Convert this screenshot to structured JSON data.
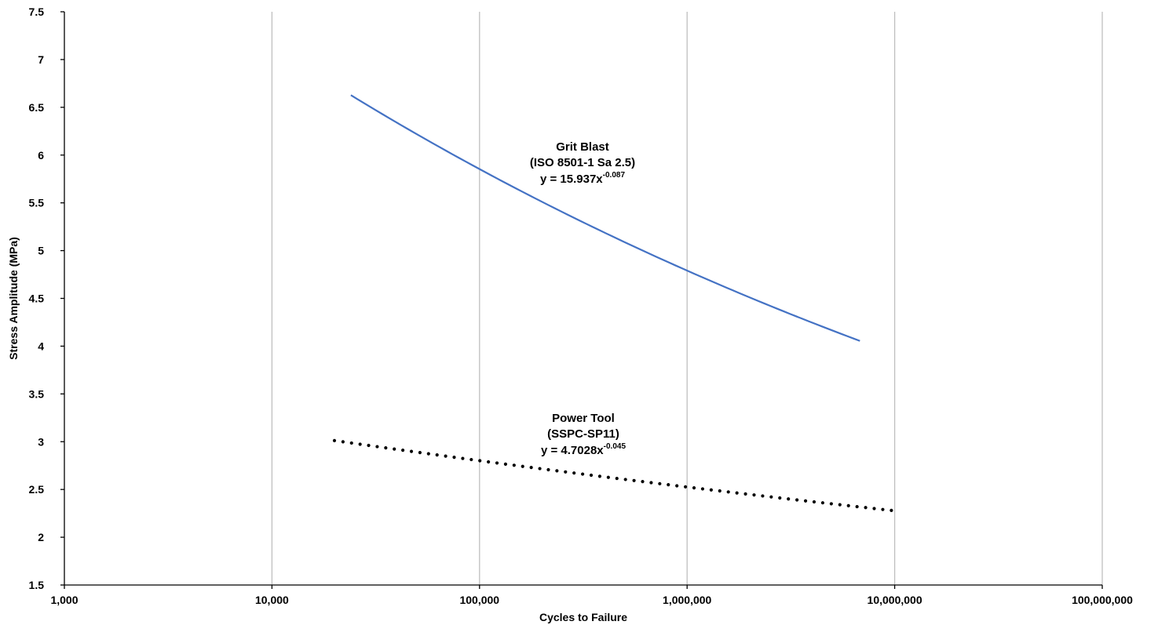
{
  "chart_data": {
    "type": "line",
    "title": "",
    "xlabel": "Cycles to Failure",
    "ylabel": "Stress Amplitude (MPa)",
    "x_scale": "log",
    "xlim": [
      1000,
      100000000
    ],
    "ylim": [
      1.5,
      7.5
    ],
    "x_ticks": [
      1000,
      10000,
      100000,
      1000000,
      10000000,
      100000000
    ],
    "x_tick_labels": [
      "1,000",
      "10,000",
      "100,000",
      "1,000,000",
      "10,000,000",
      "100,000,000"
    ],
    "y_ticks": [
      1.5,
      2,
      2.5,
      3,
      3.5,
      4,
      4.5,
      5,
      5.5,
      6,
      6.5,
      7,
      7.5
    ],
    "y_tick_labels": [
      "1.5",
      "2",
      "2.5",
      "3",
      "3.5",
      "4",
      "4.5",
      "5",
      "5.5",
      "6",
      "6.5",
      "7",
      "7.5"
    ],
    "grid": "vertical",
    "legend": "none",
    "series": [
      {
        "coefficient": 15.937,
        "exponent": -0.087,
        "x_range": [
          24000,
          6800000
        ],
        "color": "#4472C4",
        "style": "solid",
        "annotation": {
          "line1": "Grit Blast",
          "line2": "(ISO 8501-1 Sa 2.5)",
          "eq_base": "y = 15.937x",
          "eq_exp": "-0.087"
        }
      },
      {
        "coefficient": 4.7028,
        "exponent": -0.045,
        "x_range": [
          20000,
          10000000
        ],
        "color": "#000000",
        "style": "dotted",
        "annotation": {
          "line1": "Power Tool",
          "line2": "(SSPC-SP11)",
          "eq_base": "y = 4.7028x",
          "eq_exp": "-0.045"
        }
      }
    ]
  }
}
